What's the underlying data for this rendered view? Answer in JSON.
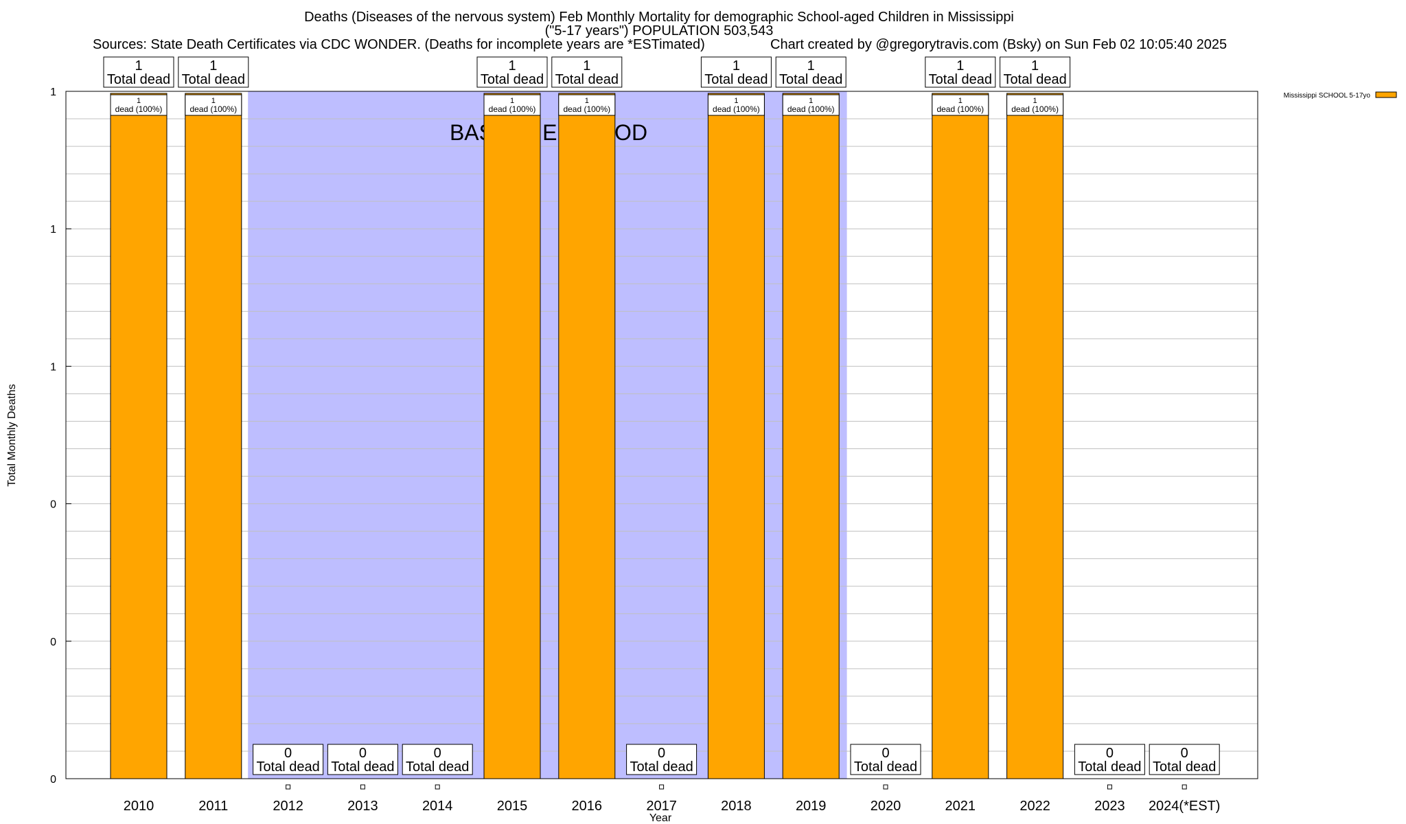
{
  "header": {
    "title_line1": "Deaths (Diseases of the nervous system) Feb Monthly Mortality for demographic School-aged Children in Mississippi",
    "title_line2": "(\"5-17 years\") POPULATION 503,543",
    "sources": "Sources: State Death Certificates via CDC WONDER. (Deaths for incomplete years are *ESTimated)",
    "credit": "Chart created by @gregorytravis.com (Bsky) on Sun Feb 02 10:05:40 2025"
  },
  "chart_data": {
    "type": "bar",
    "categories": [
      "2010",
      "2011",
      "2012",
      "2013",
      "2014",
      "2015",
      "2016",
      "2017",
      "2018",
      "2019",
      "2020",
      "2021",
      "2022",
      "2023",
      "2024(*EST)"
    ],
    "series": [
      {
        "name": "Mississippi SCHOOL 5-17yo",
        "color": "#FFA500",
        "values": [
          1,
          1,
          0,
          0,
          0,
          1,
          1,
          0,
          1,
          1,
          0,
          1,
          1,
          0,
          0
        ]
      }
    ],
    "total_labels": [
      "1",
      "1",
      "0",
      "0",
      "0",
      "1",
      "1",
      "0",
      "1",
      "1",
      "0",
      "1",
      "1",
      "0",
      "0"
    ],
    "total_suffix": "Total dead",
    "pct_labels": [
      "dead (100%)",
      "dead (100%)",
      "",
      "",
      "",
      "dead (100%)",
      "dead (100%)",
      "",
      "dead (100%)",
      "dead (100%)",
      "",
      "dead (100%)",
      "dead (100%)",
      "",
      ""
    ],
    "ytick_labels": [
      "0",
      "0",
      "0",
      "1",
      "1",
      "1"
    ],
    "ylim": [
      0,
      1
    ],
    "xlabel": "Year",
    "ylabel": "Total Monthly Deaths",
    "baseline_label": "BASELINE PERIOD",
    "baseline_years": [
      "2012",
      "2013",
      "2014",
      "2015",
      "2016",
      "2017",
      "2018",
      "2019"
    ],
    "baseline_color": "#BEBEFF",
    "grid": true,
    "legend_position": "top-right"
  }
}
